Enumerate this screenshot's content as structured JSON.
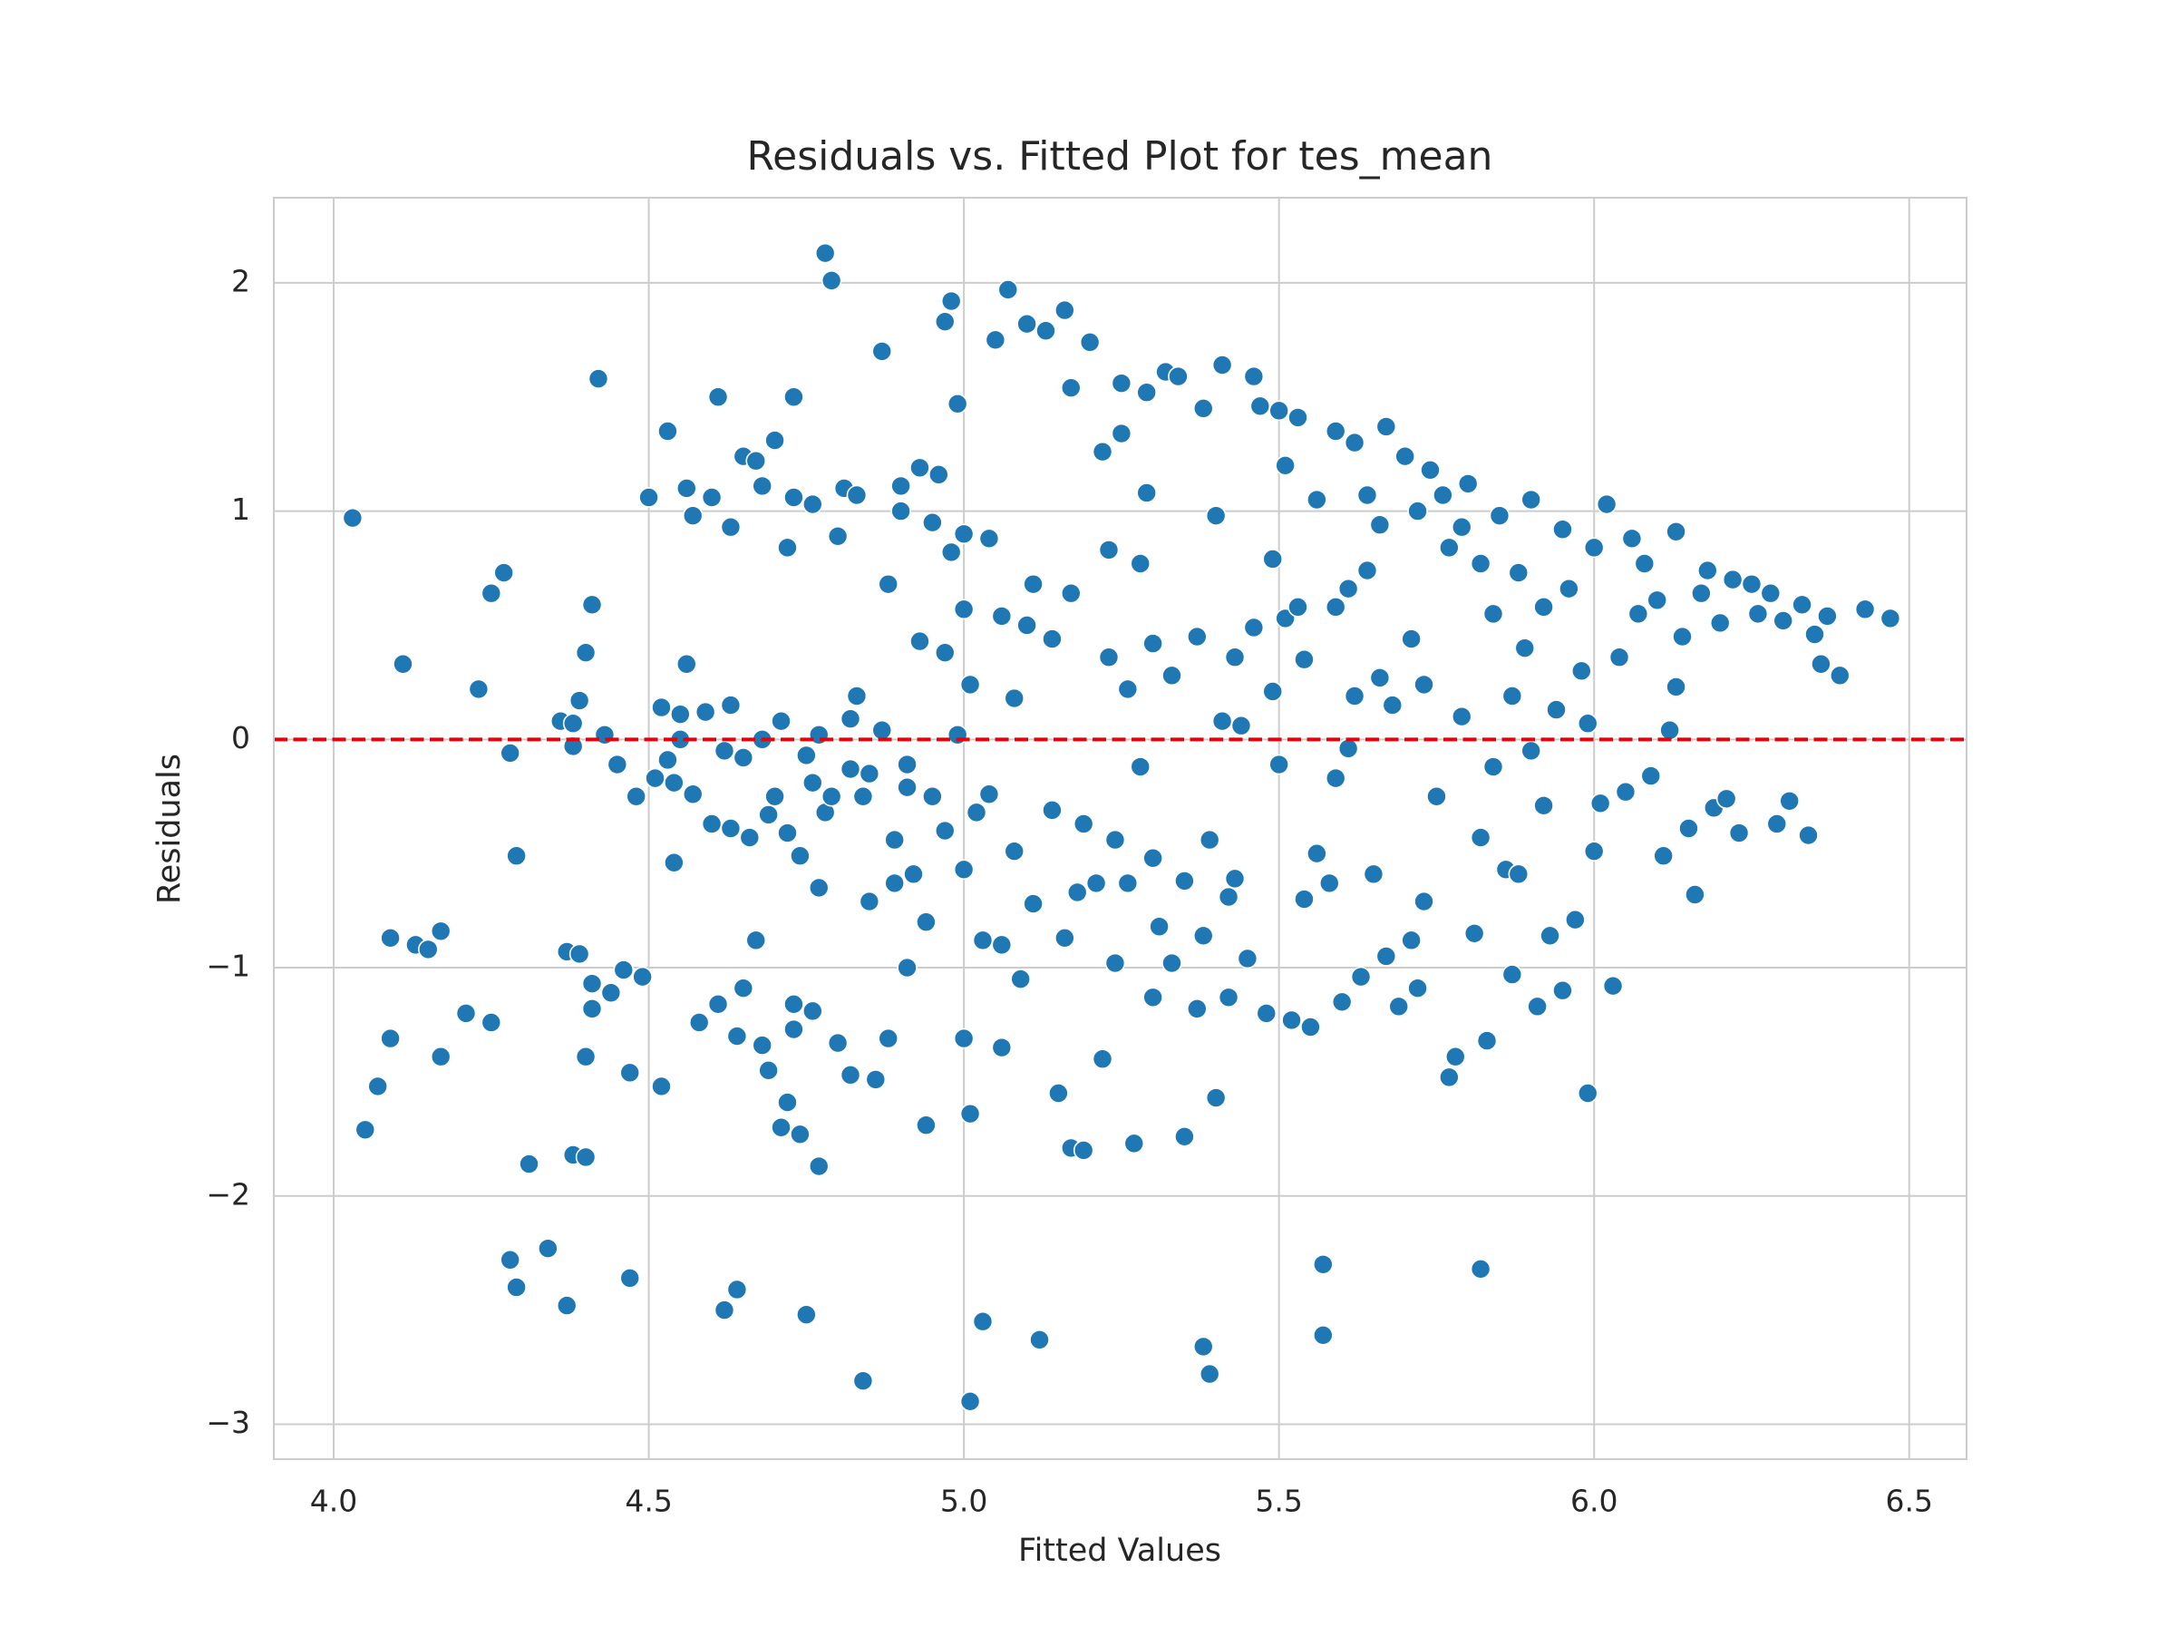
{
  "chart_data": {
    "type": "scatter",
    "title": "Residuals vs. Fitted Plot for tes_mean",
    "x_label": "Fitted Values",
    "y_label": "Residuals",
    "color": "#1f77b4",
    "grid": true,
    "xlim": [
      3.905,
      6.591
    ],
    "ylim": [
      -3.153,
      2.373
    ],
    "xticks": [
      {
        "value": 4,
        "label": "4.0"
      },
      4.5,
      {
        "value": 5,
        "label": "5.0"
      },
      5.5,
      {
        "value": 6,
        "label": "6.0"
      },
      6.5
    ],
    "yticks": [
      {
        "value": -3,
        "label": "−3"
      },
      {
        "value": -2,
        "label": "−2"
      },
      {
        "value": -1,
        "label": "−1"
      },
      0,
      1,
      2
    ],
    "reference_line": {
      "y": 0,
      "color": "#e8000b",
      "style": "dashed"
    },
    "x": [
      4.03,
      4.05,
      4.07,
      4.09,
      4.09,
      4.11,
      4.13,
      4.15,
      4.17,
      4.17,
      4.21,
      4.23,
      4.25,
      4.25,
      4.27,
      4.28,
      4.28,
      4.29,
      4.29,
      4.31,
      4.34,
      4.36,
      4.37,
      4.37,
      4.38,
      4.38,
      4.38,
      4.39,
      4.39,
      4.4,
      4.4,
      4.4,
      4.41,
      4.41,
      4.41,
      4.42,
      4.43,
      4.44,
      4.45,
      4.46,
      4.47,
      4.47,
      4.48,
      4.49,
      4.5,
      4.51,
      4.52,
      4.52,
      4.53,
      4.53,
      4.54,
      4.54,
      4.55,
      4.55,
      4.56,
      4.56,
      4.57,
      4.57,
      4.58,
      4.59,
      4.6,
      4.6,
      4.61,
      4.61,
      4.62,
      4.62,
      4.63,
      4.63,
      4.63,
      4.64,
      4.64,
      4.65,
      4.65,
      4.65,
      4.66,
      4.67,
      4.67,
      4.68,
      4.68,
      4.68,
      4.69,
      4.69,
      4.7,
      4.7,
      4.71,
      4.71,
      4.72,
      4.72,
      4.72,
      4.73,
      4.73,
      4.73,
      4.73,
      4.74,
      4.74,
      4.75,
      4.75,
      4.76,
      4.76,
      4.76,
      4.77,
      4.77,
      4.77,
      4.78,
      4.78,
      4.79,
      4.79,
      4.8,
      4.8,
      4.81,
      4.82,
      4.82,
      4.82,
      4.83,
      4.83,
      4.84,
      4.84,
      4.85,
      4.85,
      4.86,
      4.87,
      4.87,
      4.88,
      4.88,
      4.89,
      4.89,
      4.9,
      4.9,
      4.91,
      4.91,
      4.91,
      4.92,
      4.93,
      4.93,
      4.94,
      4.94,
      4.95,
      4.95,
      4.96,
      4.97,
      4.97,
      4.97,
      4.98,
      4.98,
      4.99,
      4.99,
      5.0,
      5.0,
      5.0,
      5.0,
      5.01,
      5.01,
      5.02,
      5.03,
      5.03,
      5.04,
      5.04,
      5.05,
      5.01,
      5.06,
      5.06,
      5.06,
      5.07,
      5.08,
      5.08,
      5.09,
      5.1,
      5.1,
      5.11,
      5.11,
      5.12,
      5.13,
      5.14,
      5.14,
      5.15,
      5.16,
      5.16,
      5.17,
      5.17,
      5.17,
      5.18,
      5.19,
      5.19,
      5.2,
      5.21,
      5.22,
      5.22,
      5.23,
      5.23,
      5.24,
      5.24,
      5.25,
      5.25,
      5.26,
      5.26,
      5.27,
      5.28,
      5.28,
      5.29,
      5.29,
      5.3,
      5.3,
      5.3,
      5.31,
      5.32,
      5.33,
      5.33,
      5.34,
      5.35,
      5.35,
      5.37,
      5.37,
      5.38,
      5.38,
      5.38,
      5.39,
      5.39,
      5.4,
      5.4,
      5.41,
      5.41,
      5.42,
      5.42,
      5.43,
      5.43,
      5.44,
      5.45,
      5.46,
      5.46,
      5.47,
      5.48,
      5.49,
      5.49,
      5.5,
      5.5,
      5.51,
      5.51,
      5.52,
      5.53,
      5.53,
      5.54,
      5.54,
      5.55,
      5.56,
      5.56,
      5.57,
      5.57,
      5.58,
      5.59,
      5.59,
      5.59,
      5.6,
      5.61,
      5.61,
      5.62,
      5.62,
      5.63,
      5.64,
      5.64,
      5.65,
      5.66,
      5.66,
      5.67,
      5.67,
      5.68,
      5.69,
      5.7,
      5.71,
      5.71,
      5.72,
      5.72,
      5.73,
      5.73,
      5.74,
      5.75,
      5.76,
      5.77,
      5.77,
      5.78,
      5.79,
      5.79,
      5.8,
      5.81,
      5.82,
      5.82,
      5.82,
      5.83,
      5.84,
      5.84,
      5.85,
      5.86,
      5.87,
      5.87,
      5.88,
      5.88,
      5.89,
      5.9,
      5.9,
      5.91,
      5.92,
      5.92,
      5.93,
      5.94,
      5.95,
      5.95,
      5.96,
      5.97,
      5.98,
      5.99,
      6.0,
      6.0,
      6.01,
      6.02,
      6.03,
      6.04,
      6.05,
      6.06,
      5.99,
      6.07,
      6.08,
      6.09,
      6.1,
      6.11,
      6.12,
      6.13,
      6.13,
      6.14,
      6.15,
      6.16,
      6.17,
      6.18,
      6.19,
      6.2,
      6.21,
      6.22,
      6.23,
      6.25,
      6.26,
      6.28,
      6.29,
      6.3,
      6.31,
      6.33,
      6.34,
      6.35,
      6.36,
      6.37,
      6.39,
      6.43,
      6.47
    ],
    "values": [
      0.97,
      -1.71,
      -1.52,
      -0.87,
      -1.31,
      0.33,
      -0.9,
      -0.92,
      -0.84,
      -1.39,
      -1.2,
      0.22,
      0.64,
      -1.24,
      0.73,
      -0.06,
      -2.28,
      -0.51,
      -2.4,
      -1.86,
      -2.23,
      0.08,
      -0.93,
      -2.48,
      0.07,
      -0.03,
      -1.82,
      0.17,
      -0.94,
      0.38,
      -1.39,
      -1.83,
      0.59,
      -1.07,
      -1.18,
      1.58,
      0.02,
      -1.11,
      -0.11,
      -1.01,
      -1.46,
      -2.36,
      -0.25,
      -1.04,
      1.06,
      -0.17,
      0.14,
      -1.52,
      1.35,
      -0.09,
      -0.54,
      -0.19,
      0.11,
      0.0,
      0.33,
      1.1,
      0.98,
      -0.24,
      -1.24,
      0.12,
      1.06,
      -0.37,
      1.5,
      -1.16,
      -0.05,
      -2.5,
      0.93,
      0.15,
      -0.39,
      -2.41,
      -1.3,
      1.24,
      -0.08,
      -1.09,
      -0.43,
      1.22,
      -0.88,
      1.11,
      0.0,
      -1.34,
      -0.33,
      -1.45,
      1.31,
      -0.25,
      0.08,
      -1.7,
      0.84,
      -0.41,
      -1.59,
      1.5,
      1.06,
      -1.16,
      -1.27,
      -0.51,
      -1.73,
      -0.07,
      -2.52,
      1.03,
      -0.19,
      -1.19,
      0.02,
      -0.65,
      -1.87,
      2.13,
      -0.32,
      2.01,
      -0.25,
      0.89,
      -1.33,
      1.1,
      0.09,
      -0.13,
      -1.47,
      0.19,
      1.07,
      -0.25,
      -2.81,
      -0.71,
      -0.15,
      -1.49,
      1.7,
      0.04,
      0.68,
      -1.31,
      -0.63,
      -0.44,
      1.11,
      1.0,
      -0.21,
      -0.11,
      -1.0,
      -0.59,
      0.43,
      1.19,
      -0.8,
      -1.69,
      0.95,
      -0.25,
      1.16,
      1.83,
      0.38,
      -0.4,
      1.92,
      0.82,
      1.47,
      0.02,
      0.9,
      0.57,
      -0.57,
      -1.31,
      -1.64,
      0.24,
      -0.32,
      -2.55,
      -0.88,
      0.88,
      -0.24,
      1.75,
      -2.9,
      0.54,
      -0.9,
      -1.35,
      1.97,
      0.18,
      -0.49,
      -1.05,
      1.82,
      0.5,
      0.68,
      -0.72,
      -2.63,
      1.79,
      0.44,
      -0.31,
      -1.55,
      1.88,
      -0.87,
      1.54,
      0.64,
      -1.79,
      -0.67,
      -0.37,
      -1.8,
      1.74,
      -0.63,
      1.26,
      -1.4,
      0.83,
      0.36,
      -0.44,
      -0.98,
      1.56,
      1.34,
      0.22,
      -0.63,
      -1.77,
      0.77,
      -0.12,
      1.52,
      1.08,
      0.42,
      -0.52,
      -1.13,
      -0.82,
      1.61,
      0.28,
      -0.98,
      1.59,
      -0.62,
      -1.74,
      0.45,
      -1.18,
      1.45,
      -0.86,
      -2.66,
      -0.44,
      -2.78,
      0.98,
      -1.57,
      1.64,
      0.08,
      -0.69,
      -1.13,
      0.36,
      -0.61,
      0.06,
      -0.96,
      1.59,
      0.49,
      1.46,
      -1.2,
      0.79,
      0.21,
      1.44,
      -0.11,
      1.2,
      0.53,
      -1.23,
      1.41,
      0.58,
      0.35,
      -0.7,
      -1.26,
      1.05,
      -0.5,
      -2.3,
      -2.61,
      -0.63,
      1.35,
      0.58,
      -0.17,
      -1.15,
      0.66,
      -0.04,
      1.3,
      0.19,
      -1.04,
      1.07,
      0.74,
      -0.59,
      0.94,
      0.27,
      1.37,
      -0.95,
      0.15,
      -1.17,
      1.24,
      0.44,
      -0.88,
      1.0,
      -1.09,
      0.24,
      -0.71,
      1.18,
      -0.25,
      1.07,
      0.84,
      -1.48,
      -1.39,
      0.93,
      0.1,
      1.12,
      -0.85,
      0.77,
      -0.43,
      -2.32,
      -1.32,
      0.55,
      -0.12,
      0.98,
      -0.57,
      0.19,
      -1.03,
      -0.59,
      0.73,
      0.4,
      1.05,
      -0.05,
      -1.17,
      0.58,
      -0.29,
      -0.86,
      0.13,
      0.92,
      -1.1,
      0.66,
      -0.79,
      0.3,
      0.07,
      0.84,
      -0.49,
      -0.28,
      1.03,
      -1.08,
      0.36,
      -0.23,
      0.88,
      -1.55,
      0.55,
      0.77,
      -0.16,
      0.61,
      -0.51,
      0.04,
      0.91,
      0.23,
      0.45,
      -0.39,
      -0.68,
      0.64,
      0.74,
      -0.3,
      0.51,
      -0.26,
      0.7,
      -0.41,
      0.68,
      0.55,
      0.64,
      -0.37,
      0.52,
      -0.27,
      0.59,
      -0.42,
      0.46,
      0.33,
      0.54,
      0.28,
      0.57,
      0.53
    ]
  }
}
